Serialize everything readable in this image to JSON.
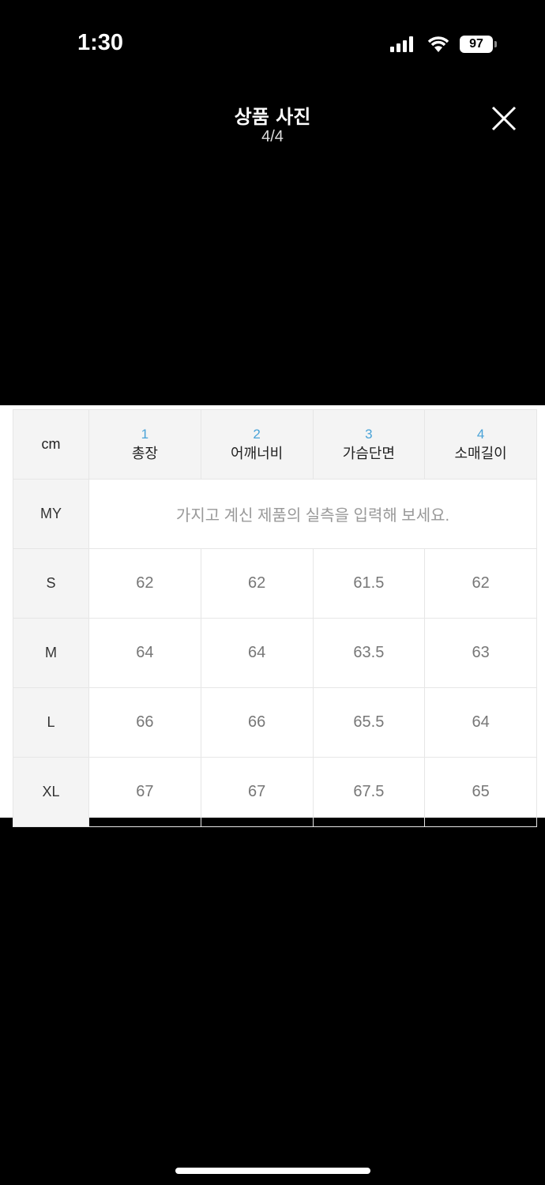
{
  "status_bar": {
    "time": "1:30",
    "battery": "97"
  },
  "header": {
    "title": "상품 사진",
    "counter": "4/4"
  },
  "size_table": {
    "unit": "cm",
    "columns": [
      {
        "num": "1",
        "label": "총장"
      },
      {
        "num": "2",
        "label": "어깨너비"
      },
      {
        "num": "3",
        "label": "가슴단면"
      },
      {
        "num": "4",
        "label": "소매길이"
      }
    ],
    "my_row": {
      "label": "MY",
      "text": "가지고 계신 제품의 실측을 입력해 보세요."
    },
    "rows": [
      {
        "size": "S",
        "values": [
          "62",
          "62",
          "61.5",
          "62"
        ]
      },
      {
        "size": "M",
        "values": [
          "64",
          "64",
          "63.5",
          "63"
        ]
      },
      {
        "size": "L",
        "values": [
          "66",
          "66",
          "65.5",
          "64"
        ]
      },
      {
        "size": "XL",
        "values": [
          "67",
          "67",
          "67.5",
          "65"
        ]
      }
    ]
  },
  "colors": {
    "accent": "#4aa3d8",
    "background": "#000000"
  }
}
